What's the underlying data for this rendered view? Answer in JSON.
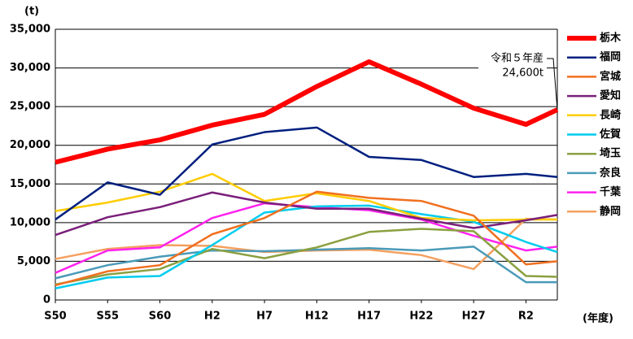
{
  "chart_data": {
    "type": "line",
    "y_unit": "(t)",
    "x_label": "(年度)",
    "annotation": [
      "令和５年産",
      "24,600t"
    ],
    "x": [
      1975,
      1980,
      1985,
      1990,
      1995,
      2000,
      2005,
      2010,
      2015,
      2020,
      2023
    ],
    "xlim": [
      1975,
      2023
    ],
    "xticks": [
      {
        "value": 1975,
        "label": "S50"
      },
      {
        "value": 1980,
        "label": "S55"
      },
      {
        "value": 1985,
        "label": "S60"
      },
      {
        "value": 1990,
        "label": "H2"
      },
      {
        "value": 1995,
        "label": "H7"
      },
      {
        "value": 2000,
        "label": "H12"
      },
      {
        "value": 2005,
        "label": "H17"
      },
      {
        "value": 2010,
        "label": "H22"
      },
      {
        "value": 2015,
        "label": "H27"
      },
      {
        "value": 2020,
        "label": "R2"
      }
    ],
    "ylim": [
      0,
      35000
    ],
    "yticks": [
      0,
      {
        "value": 5000,
        "label": "5,000"
      },
      {
        "value": 10000,
        "label": "10,000"
      },
      {
        "value": 15000,
        "label": "15,000"
      },
      {
        "value": 20000,
        "label": "20,000"
      },
      {
        "value": 25000,
        "label": "25,000"
      },
      {
        "value": 30000,
        "label": "30,000"
      },
      {
        "value": 35000,
        "label": "35,000"
      }
    ],
    "grid": true,
    "legend": "right",
    "series": [
      {
        "name": "栃木",
        "color": "#ff0000",
        "values": [
          17800,
          19500,
          20700,
          22600,
          24000,
          27600,
          30800,
          27900,
          24800,
          22700,
          24600
        ]
      },
      {
        "name": "福岡",
        "color": "#001f7f",
        "values": [
          10400,
          15200,
          13600,
          20100,
          21700,
          22300,
          18500,
          18100,
          15900,
          16300,
          15900
        ]
      },
      {
        "name": "宮城",
        "color": "#f07020",
        "values": [
          1900,
          3700,
          4500,
          8500,
          10600,
          14000,
          13200,
          12800,
          10900,
          4600,
          5000
        ]
      },
      {
        "name": "愛知",
        "color": "#7a1f7a",
        "values": [
          8400,
          10700,
          12000,
          13900,
          12600,
          11800,
          11800,
          10500,
          9300,
          10300,
          11000
        ]
      },
      {
        "name": "長崎",
        "color": "#ffcc00",
        "values": [
          11500,
          12600,
          14000,
          16300,
          12800,
          13800,
          12800,
          10600,
          10300,
          10400,
          10400
        ]
      },
      {
        "name": "佐賀",
        "color": "#00ccee",
        "values": [
          1500,
          2900,
          3100,
          7100,
          11300,
          12100,
          12200,
          11100,
          10100,
          7500,
          6200
        ]
      },
      {
        "name": "埼玉",
        "color": "#8aa040",
        "values": [
          2000,
          3300,
          4000,
          6600,
          5400,
          6800,
          8800,
          9200,
          8900,
          3100,
          3000
        ]
      },
      {
        "name": "奈良",
        "color": "#4a9ab8",
        "values": [
          2800,
          4500,
          5600,
          6400,
          6300,
          6500,
          6700,
          6400,
          6900,
          2300,
          2300
        ]
      },
      {
        "name": "千葉",
        "color": "#ff22ee",
        "values": [
          3500,
          6400,
          6800,
          10600,
          12500,
          12000,
          11600,
          10400,
          8300,
          6400,
          6900
        ]
      },
      {
        "name": "静岡",
        "color": "#f4a060",
        "values": [
          5300,
          6600,
          7100,
          7000,
          6200,
          6400,
          6500,
          5800,
          4000,
          10500,
          10400
        ]
      }
    ]
  }
}
